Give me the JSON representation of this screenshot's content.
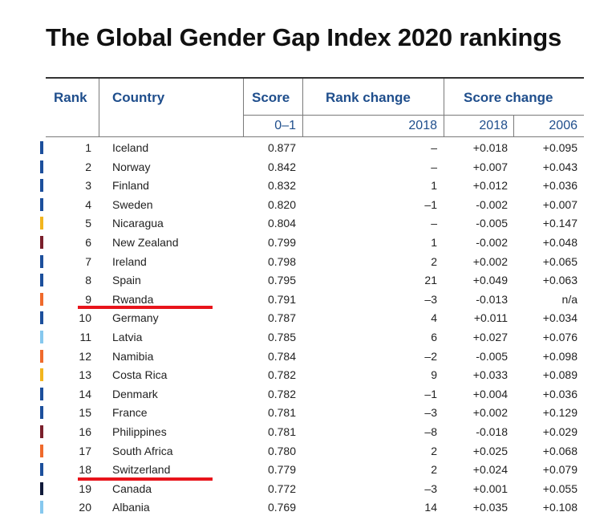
{
  "title": "The Global Gender Gap Index 2020 rankings",
  "headers": {
    "rank": "Rank",
    "country": "Country",
    "score": "Score",
    "rank_change": "Rank change",
    "score_change": "Score change"
  },
  "subheaders": {
    "score": "0–1",
    "rank_change": "2018",
    "score_change_2018": "2018",
    "score_change_2006": "2006"
  },
  "colors": {
    "header_text": "#1f4e8c",
    "underline": "#e8141b"
  },
  "rows": [
    {
      "rank": "1",
      "country": "Iceland",
      "score": "0.877",
      "rank_change": "–",
      "sc2018": "+0.018",
      "sc2006": "+0.095",
      "color": "#1c4f9c"
    },
    {
      "rank": "2",
      "country": "Norway",
      "score": "0.842",
      "rank_change": "–",
      "sc2018": "+0.007",
      "sc2006": "+0.043",
      "color": "#1c4f9c"
    },
    {
      "rank": "3",
      "country": "Finland",
      "score": "0.832",
      "rank_change": "1",
      "sc2018": "+0.012",
      "sc2006": "+0.036",
      "color": "#1c4f9c"
    },
    {
      "rank": "4",
      "country": "Sweden",
      "score": "0.820",
      "rank_change": "–1",
      "sc2018": "-0.002",
      "sc2006": "+0.007",
      "color": "#1c4f9c"
    },
    {
      "rank": "5",
      "country": "Nicaragua",
      "score": "0.804",
      "rank_change": "–",
      "sc2018": "-0.005",
      "sc2006": "+0.147",
      "color": "#f2b51f"
    },
    {
      "rank": "6",
      "country": "New Zealand",
      "score": "0.799",
      "rank_change": "1",
      "sc2018": "-0.002",
      "sc2006": "+0.048",
      "color": "#7a1f2b"
    },
    {
      "rank": "7",
      "country": "Ireland",
      "score": "0.798",
      "rank_change": "2",
      "sc2018": "+0.002",
      "sc2006": "+0.065",
      "color": "#1c4f9c"
    },
    {
      "rank": "8",
      "country": "Spain",
      "score": "0.795",
      "rank_change": "21",
      "sc2018": "+0.049",
      "sc2006": "+0.063",
      "color": "#1c4f9c"
    },
    {
      "rank": "9",
      "country": "Rwanda",
      "score": "0.791",
      "rank_change": "–3",
      "sc2018": "-0.013",
      "sc2006": "n/a",
      "color": "#ef6a2c"
    },
    {
      "rank": "10",
      "country": "Germany",
      "score": "0.787",
      "rank_change": "4",
      "sc2018": "+0.011",
      "sc2006": "+0.034",
      "color": "#1c4f9c"
    },
    {
      "rank": "11",
      "country": "Latvia",
      "score": "0.785",
      "rank_change": "6",
      "sc2018": "+0.027",
      "sc2006": "+0.076",
      "color": "#86c8ee"
    },
    {
      "rank": "12",
      "country": "Namibia",
      "score": "0.784",
      "rank_change": "–2",
      "sc2018": "-0.005",
      "sc2006": "+0.098",
      "color": "#ef6a2c"
    },
    {
      "rank": "13",
      "country": "Costa Rica",
      "score": "0.782",
      "rank_change": "9",
      "sc2018": "+0.033",
      "sc2006": "+0.089",
      "color": "#f2b51f"
    },
    {
      "rank": "14",
      "country": "Denmark",
      "score": "0.782",
      "rank_change": "–1",
      "sc2018": "+0.004",
      "sc2006": "+0.036",
      "color": "#1c4f9c"
    },
    {
      "rank": "15",
      "country": "France",
      "score": "0.781",
      "rank_change": "–3",
      "sc2018": "+0.002",
      "sc2006": "+0.129",
      "color": "#1c4f9c"
    },
    {
      "rank": "16",
      "country": "Philippines",
      "score": "0.781",
      "rank_change": "–8",
      "sc2018": "-0.018",
      "sc2006": "+0.029",
      "color": "#7a1f2b"
    },
    {
      "rank": "17",
      "country": "South Africa",
      "score": "0.780",
      "rank_change": "2",
      "sc2018": "+0.025",
      "sc2006": "+0.068",
      "color": "#ef6a2c"
    },
    {
      "rank": "18",
      "country": "Switzerland",
      "score": "0.779",
      "rank_change": "2",
      "sc2018": "+0.024",
      "sc2006": "+0.079",
      "color": "#1c4f9c"
    },
    {
      "rank": "19",
      "country": "Canada",
      "score": "0.772",
      "rank_change": "–3",
      "sc2018": "+0.001",
      "sc2006": "+0.055",
      "color": "#101a3a"
    },
    {
      "rank": "20",
      "country": "Albania",
      "score": "0.769",
      "rank_change": "14",
      "sc2018": "+0.035",
      "sc2006": "+0.108",
      "color": "#86c8ee"
    }
  ]
}
